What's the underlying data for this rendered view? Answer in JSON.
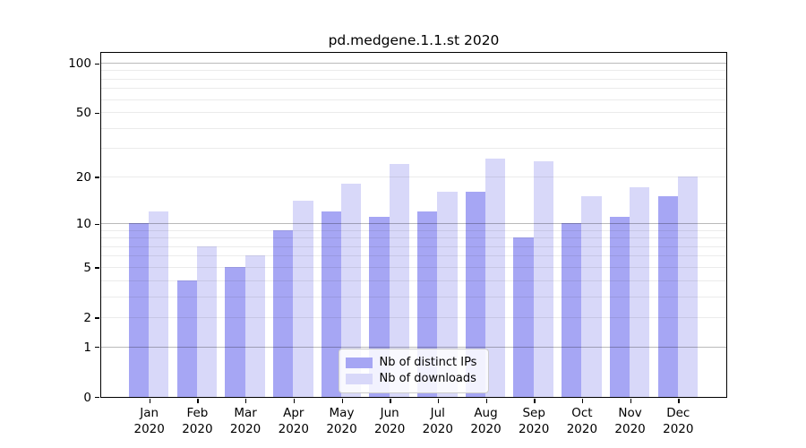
{
  "figure": {
    "title": "pd.medgene.1.1.st 2020"
  },
  "chart_data": {
    "type": "bar",
    "title": "pd.medgene.1.1.st 2020",
    "x_months": [
      "Jan",
      "Feb",
      "Mar",
      "Apr",
      "May",
      "Jun",
      "Jul",
      "Aug",
      "Sep",
      "Oct",
      "Nov",
      "Dec"
    ],
    "x_year": "2020",
    "series": [
      {
        "name": "Nb of distinct IPs",
        "color": "#a6a6f4",
        "values": [
          10,
          4,
          5,
          9,
          12,
          11,
          12,
          16,
          8,
          10,
          11,
          15
        ]
      },
      {
        "name": "Nb of downloads",
        "color": "#d8d8f9",
        "values": [
          12,
          7,
          6,
          14,
          18,
          24,
          16,
          26,
          25,
          15,
          17,
          20
        ]
      }
    ],
    "y_scale": "log1p",
    "y_tick_values": [
      100,
      50,
      20,
      10,
      5,
      2,
      1,
      0
    ],
    "y_major_gridlines": [
      1,
      10,
      100
    ],
    "y_minor_gridlines": [
      2,
      3,
      4,
      5,
      6,
      7,
      8,
      9,
      20,
      30,
      40,
      50,
      60,
      70,
      80,
      90
    ],
    "ylim": [
      0,
      115
    ],
    "xlabel": "",
    "ylabel": "",
    "grid": true,
    "legend_position": "lower center-right"
  }
}
